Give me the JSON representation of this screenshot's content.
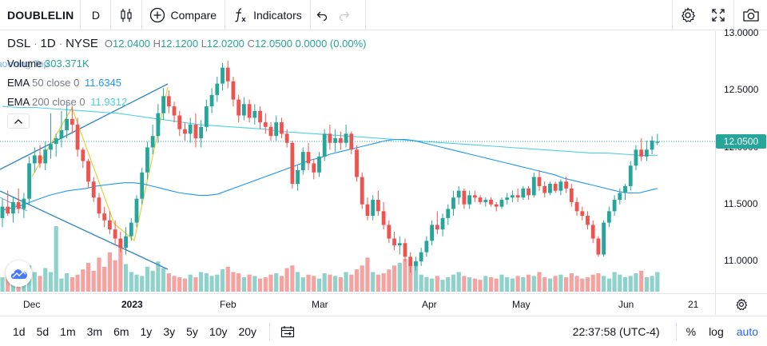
{
  "toolbar": {
    "symbol": "DOUBLELIN",
    "interval": "D",
    "compare_label": "Compare",
    "indicators_label": "Indicators"
  },
  "legend": {
    "symbol": "DSL",
    "interval": "1D",
    "exchange": "NYSE",
    "open_label": "O",
    "open": "12.0400",
    "high_label": "H",
    "high": "12.1200",
    "low_label": "L",
    "low": "12.0200",
    "close_label": "C",
    "close": "12.0500",
    "change": "0.0000 (0.00%)",
    "volume_label": "Volume",
    "volume": "303.371K",
    "peek_text": "aooning Top",
    "ema50_label": "EMA",
    "ema50_params": "50 close 0",
    "ema50_value": "11.6345",
    "ema200_label": "EMA",
    "ema200_params": "200 close 0",
    "ema200_value": "11.9312"
  },
  "price_axis": {
    "labels": [
      "13.0000",
      "12.5000",
      "12.0000",
      "11.5000",
      "11.0000"
    ],
    "last_price": "12.0500"
  },
  "time_axis": {
    "labels": [
      "Dec",
      "2023",
      "Feb",
      "Mar",
      "Apr",
      "May",
      "Jun",
      "21"
    ]
  },
  "bottom_bar": {
    "ranges": [
      "1d",
      "5d",
      "1m",
      "3m",
      "6m",
      "1y",
      "3y",
      "5y",
      "10y",
      "20y"
    ],
    "clock": "22:37:58 (UTC-4)",
    "percent_label": "%",
    "log_label": "log",
    "auto_label": "auto"
  },
  "colors": {
    "up": "#26a69a",
    "down": "#ef5350",
    "ema50": "#2196f3",
    "ema200": "#4dd0e1",
    "channel": "#2e86c1",
    "zigzag": "#e6d03a"
  },
  "chart_data": {
    "type": "candlestick",
    "symbol": "DSL",
    "interval": "1D",
    "ylim": [
      10.72,
      13.02
    ],
    "last_price": 12.05,
    "up_color": "#26a69a",
    "down_color": "#ef5350",
    "candles": [
      {
        "o": 11.38,
        "h": 11.55,
        "l": 11.3,
        "c": 11.48
      },
      {
        "o": 11.48,
        "h": 11.62,
        "l": 11.4,
        "c": 11.42
      },
      {
        "o": 11.42,
        "h": 11.56,
        "l": 11.34,
        "c": 11.52
      },
      {
        "o": 11.52,
        "h": 11.64,
        "l": 11.42,
        "c": 11.46
      },
      {
        "o": 11.46,
        "h": 11.6,
        "l": 11.38,
        "c": 11.55
      },
      {
        "o": 11.55,
        "h": 11.92,
        "l": 11.5,
        "c": 11.86
      },
      {
        "o": 11.86,
        "h": 12.0,
        "l": 11.78,
        "c": 11.93
      },
      {
        "o": 11.93,
        "h": 12.02,
        "l": 11.82,
        "c": 11.86
      },
      {
        "o": 11.86,
        "h": 12.05,
        "l": 11.8,
        "c": 11.98
      },
      {
        "o": 11.98,
        "h": 12.3,
        "l": 11.9,
        "c": 12.03
      },
      {
        "o": 12.03,
        "h": 12.12,
        "l": 11.92,
        "c": 12.08
      },
      {
        "o": 12.08,
        "h": 12.32,
        "l": 12.0,
        "c": 12.15
      },
      {
        "o": 12.15,
        "h": 12.4,
        "l": 12.08,
        "c": 12.25
      },
      {
        "o": 12.25,
        "h": 12.36,
        "l": 12.12,
        "c": 12.2
      },
      {
        "o": 12.2,
        "h": 12.26,
        "l": 11.92,
        "c": 11.98
      },
      {
        "o": 11.98,
        "h": 12.0,
        "l": 11.82,
        "c": 11.88
      },
      {
        "o": 11.88,
        "h": 11.9,
        "l": 11.64,
        "c": 11.7
      },
      {
        "o": 11.7,
        "h": 11.74,
        "l": 11.52,
        "c": 11.56
      },
      {
        "o": 11.56,
        "h": 11.6,
        "l": 11.38,
        "c": 11.42
      },
      {
        "o": 11.42,
        "h": 11.48,
        "l": 11.3,
        "c": 11.36
      },
      {
        "o": 11.36,
        "h": 11.44,
        "l": 11.24,
        "c": 11.28
      },
      {
        "o": 11.28,
        "h": 11.36,
        "l": 11.14,
        "c": 11.2
      },
      {
        "o": 11.2,
        "h": 11.26,
        "l": 11.08,
        "c": 11.12
      },
      {
        "o": 11.12,
        "h": 11.3,
        "l": 11.06,
        "c": 11.22
      },
      {
        "o": 11.22,
        "h": 11.38,
        "l": 11.18,
        "c": 11.34
      },
      {
        "o": 11.34,
        "h": 11.58,
        "l": 11.3,
        "c": 11.55
      },
      {
        "o": 11.55,
        "h": 11.82,
        "l": 11.5,
        "c": 11.78
      },
      {
        "o": 11.78,
        "h": 12.05,
        "l": 11.72,
        "c": 12.0
      },
      {
        "o": 12.0,
        "h": 12.2,
        "l": 11.94,
        "c": 12.1
      },
      {
        "o": 12.1,
        "h": 12.38,
        "l": 12.04,
        "c": 12.3
      },
      {
        "o": 12.3,
        "h": 12.52,
        "l": 12.24,
        "c": 12.45
      },
      {
        "o": 12.45,
        "h": 12.5,
        "l": 12.3,
        "c": 12.36
      },
      {
        "o": 12.36,
        "h": 12.4,
        "l": 12.22,
        "c": 12.28
      },
      {
        "o": 12.28,
        "h": 12.32,
        "l": 12.1,
        "c": 12.16
      },
      {
        "o": 12.16,
        "h": 12.22,
        "l": 12.06,
        "c": 12.12
      },
      {
        "o": 12.12,
        "h": 12.26,
        "l": 12.04,
        "c": 12.2
      },
      {
        "o": 12.2,
        "h": 12.3,
        "l": 12.0,
        "c": 12.08
      },
      {
        "o": 12.08,
        "h": 12.24,
        "l": 12.0,
        "c": 12.18
      },
      {
        "o": 12.18,
        "h": 12.42,
        "l": 12.14,
        "c": 12.36
      },
      {
        "o": 12.36,
        "h": 12.52,
        "l": 12.3,
        "c": 12.46
      },
      {
        "o": 12.46,
        "h": 12.62,
        "l": 12.4,
        "c": 12.56
      },
      {
        "o": 12.56,
        "h": 12.74,
        "l": 12.5,
        "c": 12.7
      },
      {
        "o": 12.7,
        "h": 12.76,
        "l": 12.52,
        "c": 12.58
      },
      {
        "o": 12.58,
        "h": 12.62,
        "l": 12.36,
        "c": 12.42
      },
      {
        "o": 12.42,
        "h": 12.46,
        "l": 12.22,
        "c": 12.28
      },
      {
        "o": 12.28,
        "h": 12.44,
        "l": 12.24,
        "c": 12.38
      },
      {
        "o": 12.38,
        "h": 12.42,
        "l": 12.22,
        "c": 12.26
      },
      {
        "o": 12.26,
        "h": 12.38,
        "l": 12.2,
        "c": 12.32
      },
      {
        "o": 12.32,
        "h": 12.36,
        "l": 12.16,
        "c": 12.22
      },
      {
        "o": 12.22,
        "h": 12.3,
        "l": 12.12,
        "c": 12.18
      },
      {
        "o": 12.18,
        "h": 12.22,
        "l": 12.06,
        "c": 12.1
      },
      {
        "o": 12.1,
        "h": 12.28,
        "l": 12.06,
        "c": 12.22
      },
      {
        "o": 12.22,
        "h": 12.26,
        "l": 12.08,
        "c": 12.12
      },
      {
        "o": 12.12,
        "h": 12.16,
        "l": 12.0,
        "c": 12.04
      },
      {
        "o": 12.04,
        "h": 12.06,
        "l": 11.64,
        "c": 11.68
      },
      {
        "o": 11.68,
        "h": 11.84,
        "l": 11.62,
        "c": 11.8
      },
      {
        "o": 11.8,
        "h": 12.0,
        "l": 11.76,
        "c": 11.96
      },
      {
        "o": 11.96,
        "h": 12.04,
        "l": 11.8,
        "c": 11.86
      },
      {
        "o": 11.86,
        "h": 11.9,
        "l": 11.72,
        "c": 11.78
      },
      {
        "o": 11.78,
        "h": 11.96,
        "l": 11.74,
        "c": 11.92
      },
      {
        "o": 11.92,
        "h": 12.16,
        "l": 11.88,
        "c": 12.12
      },
      {
        "o": 12.12,
        "h": 12.2,
        "l": 11.98,
        "c": 12.04
      },
      {
        "o": 12.04,
        "h": 12.16,
        "l": 11.96,
        "c": 12.08
      },
      {
        "o": 12.08,
        "h": 12.14,
        "l": 11.98,
        "c": 12.04
      },
      {
        "o": 12.04,
        "h": 12.2,
        "l": 12.0,
        "c": 12.12
      },
      {
        "o": 12.12,
        "h": 12.14,
        "l": 11.94,
        "c": 11.98
      },
      {
        "o": 11.98,
        "h": 12.02,
        "l": 11.7,
        "c": 11.74
      },
      {
        "o": 11.74,
        "h": 11.78,
        "l": 11.46,
        "c": 11.5
      },
      {
        "o": 11.5,
        "h": 11.56,
        "l": 11.36,
        "c": 11.4
      },
      {
        "o": 11.4,
        "h": 11.58,
        "l": 11.36,
        "c": 11.54
      },
      {
        "o": 11.54,
        "h": 11.62,
        "l": 11.4,
        "c": 11.44
      },
      {
        "o": 11.44,
        "h": 11.52,
        "l": 11.28,
        "c": 11.32
      },
      {
        "o": 11.32,
        "h": 11.36,
        "l": 11.16,
        "c": 11.2
      },
      {
        "o": 11.2,
        "h": 11.26,
        "l": 11.1,
        "c": 11.14
      },
      {
        "o": 11.14,
        "h": 11.22,
        "l": 11.06,
        "c": 11.16
      },
      {
        "o": 11.16,
        "h": 11.2,
        "l": 11.0,
        "c": 11.04
      },
      {
        "o": 11.04,
        "h": 11.08,
        "l": 10.9,
        "c": 10.96
      },
      {
        "o": 10.96,
        "h": 11.04,
        "l": 10.92,
        "c": 11.0
      },
      {
        "o": 11.0,
        "h": 11.12,
        "l": 10.96,
        "c": 11.08
      },
      {
        "o": 11.08,
        "h": 11.22,
        "l": 11.04,
        "c": 11.18
      },
      {
        "o": 11.18,
        "h": 11.36,
        "l": 11.14,
        "c": 11.32
      },
      {
        "o": 11.32,
        "h": 11.44,
        "l": 11.24,
        "c": 11.28
      },
      {
        "o": 11.28,
        "h": 11.42,
        "l": 11.22,
        "c": 11.38
      },
      {
        "o": 11.38,
        "h": 11.5,
        "l": 11.32,
        "c": 11.46
      },
      {
        "o": 11.46,
        "h": 11.62,
        "l": 11.4,
        "c": 11.56
      },
      {
        "o": 11.56,
        "h": 11.66,
        "l": 11.5,
        "c": 11.62
      },
      {
        "o": 11.62,
        "h": 11.64,
        "l": 11.46,
        "c": 11.5
      },
      {
        "o": 11.5,
        "h": 11.62,
        "l": 11.46,
        "c": 11.58
      },
      {
        "o": 11.58,
        "h": 11.62,
        "l": 11.52,
        "c": 11.56
      },
      {
        "o": 11.56,
        "h": 11.58,
        "l": 11.5,
        "c": 11.52
      },
      {
        "o": 11.52,
        "h": 11.56,
        "l": 11.48,
        "c": 11.54
      },
      {
        "o": 11.54,
        "h": 11.56,
        "l": 11.48,
        "c": 11.5
      },
      {
        "o": 11.5,
        "h": 11.52,
        "l": 11.44,
        "c": 11.48
      },
      {
        "o": 11.48,
        "h": 11.56,
        "l": 11.46,
        "c": 11.54
      },
      {
        "o": 11.54,
        "h": 11.6,
        "l": 11.5,
        "c": 11.56
      },
      {
        "o": 11.56,
        "h": 11.62,
        "l": 11.52,
        "c": 11.58
      },
      {
        "o": 11.58,
        "h": 11.64,
        "l": 11.52,
        "c": 11.56
      },
      {
        "o": 11.56,
        "h": 11.66,
        "l": 11.54,
        "c": 11.64
      },
      {
        "o": 11.64,
        "h": 11.66,
        "l": 11.54,
        "c": 11.58
      },
      {
        "o": 11.58,
        "h": 11.78,
        "l": 11.56,
        "c": 11.74
      },
      {
        "o": 11.74,
        "h": 11.8,
        "l": 11.62,
        "c": 11.66
      },
      {
        "o": 11.66,
        "h": 11.7,
        "l": 11.56,
        "c": 11.6
      },
      {
        "o": 11.6,
        "h": 11.7,
        "l": 11.58,
        "c": 11.68
      },
      {
        "o": 11.68,
        "h": 11.7,
        "l": 11.6,
        "c": 11.62
      },
      {
        "o": 11.62,
        "h": 11.72,
        "l": 11.58,
        "c": 11.7
      },
      {
        "o": 11.7,
        "h": 11.74,
        "l": 11.6,
        "c": 11.64
      },
      {
        "o": 11.64,
        "h": 11.68,
        "l": 11.48,
        "c": 11.52
      },
      {
        "o": 11.52,
        "h": 11.56,
        "l": 11.4,
        "c": 11.44
      },
      {
        "o": 11.44,
        "h": 11.48,
        "l": 11.36,
        "c": 11.4
      },
      {
        "o": 11.4,
        "h": 11.44,
        "l": 11.28,
        "c": 11.32
      },
      {
        "o": 11.32,
        "h": 11.36,
        "l": 11.16,
        "c": 11.2
      },
      {
        "o": 11.2,
        "h": 11.22,
        "l": 11.04,
        "c": 11.06
      },
      {
        "o": 11.06,
        "h": 11.36,
        "l": 11.04,
        "c": 11.34
      },
      {
        "o": 11.34,
        "h": 11.48,
        "l": 11.3,
        "c": 11.44
      },
      {
        "o": 11.44,
        "h": 11.58,
        "l": 11.4,
        "c": 11.54
      },
      {
        "o": 11.54,
        "h": 11.64,
        "l": 11.5,
        "c": 11.6
      },
      {
        "o": 11.6,
        "h": 11.68,
        "l": 11.54,
        "c": 11.66
      },
      {
        "o": 11.66,
        "h": 11.88,
        "l": 11.62,
        "c": 11.84
      },
      {
        "o": 11.84,
        "h": 12.02,
        "l": 11.8,
        "c": 11.98
      },
      {
        "o": 11.98,
        "h": 12.08,
        "l": 11.88,
        "c": 11.92
      },
      {
        "o": 11.92,
        "h": 12.06,
        "l": 11.88,
        "c": 11.98
      },
      {
        "o": 11.98,
        "h": 12.1,
        "l": 11.94,
        "c": 12.06
      },
      {
        "o": 12.04,
        "h": 12.12,
        "l": 12.02,
        "c": 12.05
      }
    ],
    "volume": [
      0.22,
      0.28,
      0.18,
      0.26,
      0.34,
      0.4,
      0.3,
      0.24,
      0.36,
      0.3,
      1.0,
      0.2,
      0.28,
      0.22,
      0.26,
      0.34,
      0.44,
      0.32,
      0.52,
      0.38,
      0.6,
      0.48,
      0.7,
      0.42,
      0.3,
      0.26,
      0.24,
      0.38,
      0.32,
      0.46,
      0.36,
      0.28,
      0.24,
      0.22,
      0.2,
      0.26,
      0.22,
      0.3,
      0.28,
      0.24,
      0.26,
      0.34,
      0.38,
      0.3,
      0.28,
      0.22,
      0.26,
      0.24,
      0.2,
      0.22,
      0.26,
      0.28,
      0.24,
      0.36,
      0.4,
      0.3,
      0.22,
      0.26,
      0.24,
      0.2,
      0.28,
      0.26,
      0.24,
      0.22,
      0.3,
      0.26,
      0.34,
      0.4,
      0.52,
      0.3,
      0.26,
      0.28,
      0.34,
      0.4,
      0.44,
      0.5,
      0.42,
      0.46,
      0.26,
      0.22,
      0.2,
      0.24,
      0.18,
      0.22,
      0.26,
      0.3,
      0.24,
      0.22,
      0.2,
      0.18,
      0.24,
      0.22,
      0.2,
      0.26,
      0.22,
      0.2,
      0.24,
      0.22,
      0.26,
      0.24,
      0.3,
      0.22,
      0.2,
      0.24,
      0.26,
      0.22,
      0.28,
      0.24,
      0.2,
      0.22,
      0.26,
      0.28,
      0.24,
      0.2,
      0.3,
      0.26,
      0.22,
      0.24,
      0.28,
      0.32,
      0.22,
      0.24,
      0.3,
      0.2
    ],
    "ema50": [
      11.45,
      11.47,
      11.49,
      11.52,
      11.55,
      11.58,
      11.6,
      11.62,
      11.63,
      11.64,
      11.66,
      11.67,
      11.68,
      11.69,
      11.69,
      11.68,
      11.66,
      11.64,
      11.62,
      11.6,
      11.59,
      11.58,
      11.58,
      11.59,
      11.62,
      11.65,
      11.68,
      11.71,
      11.74,
      11.77,
      11.8,
      11.83,
      11.86,
      11.89,
      11.91,
      11.94,
      11.96,
      11.98,
      12.0,
      12.02,
      12.04,
      12.06,
      12.07,
      12.07,
      12.06,
      12.04,
      12.02,
      12.0,
      11.98,
      11.96,
      11.94,
      11.92,
      11.9,
      11.88,
      11.86,
      11.84,
      11.82,
      11.8,
      11.78,
      11.76,
      11.73,
      11.71,
      11.69,
      11.67,
      11.65,
      11.63,
      11.61,
      11.6,
      11.6,
      11.62,
      11.64
    ],
    "ema200": [
      12.36,
      12.35,
      12.35,
      12.34,
      12.33,
      12.32,
      12.31,
      12.3,
      12.28,
      12.26,
      12.24,
      12.22,
      12.2,
      12.19,
      12.18,
      12.17,
      12.16,
      12.14,
      12.13,
      12.12,
      12.11,
      12.1,
      12.09,
      12.08,
      12.07,
      12.06,
      12.05,
      12.04,
      12.03,
      12.02,
      12.01,
      12.0,
      11.99,
      11.98,
      11.97,
      11.96,
      11.95,
      11.95,
      11.94,
      11.93,
      11.93
    ]
  }
}
